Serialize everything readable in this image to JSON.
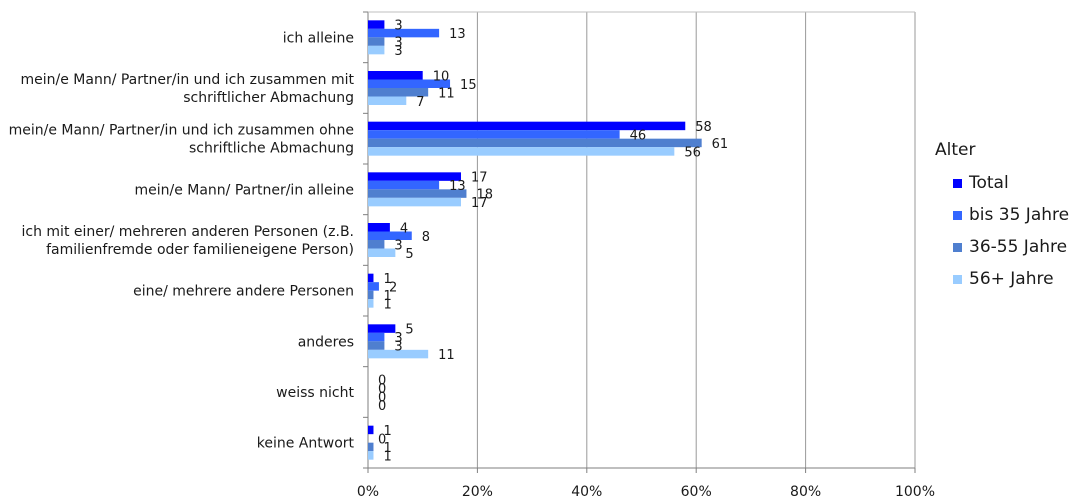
{
  "chart_data": {
    "type": "bar",
    "orientation": "horizontal",
    "categories": [
      [
        "ich alleine"
      ],
      [
        "mein/e Mann/ Partner/in und ich zusammen mit",
        "schriftlicher Abmachung"
      ],
      [
        "mein/e Mann/ Partner/in und ich zusammen ohne",
        "schriftliche Abmachung"
      ],
      [
        "mein/e Mann/ Partner/in alleine"
      ],
      [
        "ich mit einer/ mehreren anderen Personen (z.B.",
        "familienfremde oder familieneigene Person)"
      ],
      [
        "eine/ mehrere andere Personen"
      ],
      [
        "anderes"
      ],
      [
        "weiss nicht"
      ],
      [
        "keine Antwort"
      ]
    ],
    "series": [
      {
        "name": "Total",
        "color": "#0000ff",
        "values": [
          3,
          10,
          58,
          17,
          4,
          1,
          5,
          0,
          1
        ]
      },
      {
        "name": "bis 35 Jahre",
        "color": "#3366ff",
        "values": [
          13,
          15,
          46,
          13,
          8,
          2,
          3,
          0,
          0
        ]
      },
      {
        "name": "36-55 Jahre",
        "color": "#4f7fcf",
        "values": [
          3,
          11,
          61,
          18,
          3,
          1,
          3,
          0,
          1
        ]
      },
      {
        "name": "56+ Jahre",
        "color": "#99ccff",
        "values": [
          3,
          7,
          56,
          17,
          5,
          1,
          11,
          0,
          1
        ]
      }
    ],
    "value_labels": [
      [
        "3",
        "13",
        "3",
        "3"
      ],
      [
        "10",
        "15",
        "11",
        "7"
      ],
      [
        "58",
        "46",
        "61",
        "56"
      ],
      [
        "17",
        "13",
        "18",
        "17"
      ],
      [
        "4",
        "8",
        "3",
        "5"
      ],
      [
        "1",
        "2",
        "1",
        "1"
      ],
      [
        "5",
        "3",
        "3",
        "11"
      ],
      [
        "0",
        "0",
        "0",
        "0"
      ],
      [
        "1",
        "0",
        "1",
        "1"
      ]
    ],
    "x_ticks": [
      "0%",
      "20%",
      "40%",
      "60%",
      "80%",
      "100%"
    ],
    "xlim": [
      0,
      100
    ],
    "legend": {
      "title": "Alter",
      "position": "right"
    },
    "grid": "vertical"
  }
}
